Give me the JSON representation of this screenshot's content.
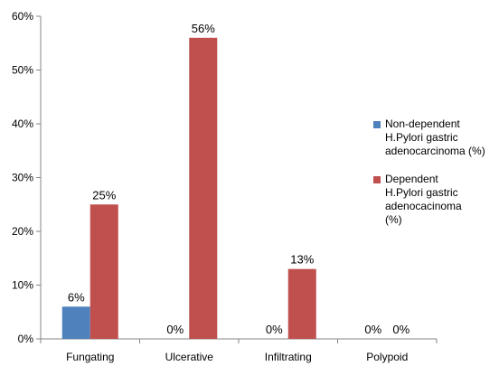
{
  "chart_data": {
    "type": "bar",
    "categories": [
      "Fungating",
      "Ulcerative",
      "Infiltrating",
      "Polypoid"
    ],
    "series": [
      {
        "name": "Non-dependent\nH.Pylori gastric\nadenocarcinoma (%)",
        "color": "#4F81BD",
        "values": [
          6,
          0,
          0,
          0
        ],
        "labels": [
          "6%",
          "0%",
          "0%",
          "0%"
        ]
      },
      {
        "name": "Dependent\nH.Pylori gastric\nadenocacinoma\n(%)",
        "color": "#C0504D",
        "values": [
          25,
          56,
          13,
          0
        ],
        "labels": [
          "25%",
          "56%",
          "13%",
          "0%"
        ]
      }
    ],
    "ylim": [
      0,
      60
    ],
    "yticks": [
      0,
      10,
      20,
      30,
      40,
      50,
      60
    ],
    "ytick_labels": [
      "0%",
      "10%",
      "20%",
      "30%",
      "40%",
      "50%",
      "60%"
    ],
    "title": "",
    "xlabel": "",
    "ylabel": "",
    "grid": false,
    "legend_position": "right"
  }
}
